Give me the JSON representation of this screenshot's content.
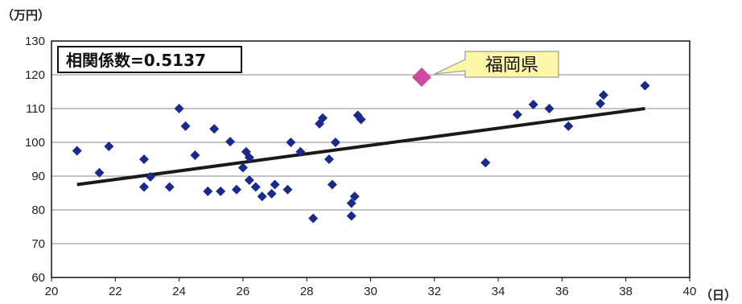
{
  "chart_data": {
    "type": "scatter",
    "ylabel": "（万円）",
    "xlabel": "（日）",
    "xlim": [
      20,
      40
    ],
    "ylim": [
      60,
      130
    ],
    "xticks": [
      20,
      22,
      24,
      26,
      28,
      30,
      32,
      34,
      36,
      38,
      40
    ],
    "yticks": [
      60,
      70,
      80,
      90,
      100,
      110,
      120,
      130
    ],
    "grid": "horizontal",
    "annotation_box": "相関係数=0.5137",
    "highlight": {
      "label": "福岡県",
      "x": 31.6,
      "y": 119.3,
      "color": "#cc4aa0"
    },
    "point_color": "#1a2a8c",
    "trendline": {
      "x": [
        20.8,
        38.6
      ],
      "y": [
        87.5,
        110.0
      ],
      "color": "#1a1a1a"
    },
    "points": [
      [
        20.8,
        97.5
      ],
      [
        21.5,
        91.0
      ],
      [
        21.8,
        98.8
      ],
      [
        22.9,
        95.0
      ],
      [
        22.9,
        86.8
      ],
      [
        23.1,
        89.8
      ],
      [
        23.7,
        86.8
      ],
      [
        24.0,
        110.0
      ],
      [
        24.2,
        104.8
      ],
      [
        24.5,
        96.2
      ],
      [
        24.9,
        85.5
      ],
      [
        25.1,
        104.0
      ],
      [
        25.3,
        85.5
      ],
      [
        25.6,
        100.2
      ],
      [
        25.8,
        86.0
      ],
      [
        26.0,
        92.5
      ],
      [
        26.1,
        97.2
      ],
      [
        26.2,
        95.5
      ],
      [
        26.2,
        88.8
      ],
      [
        26.4,
        86.8
      ],
      [
        26.6,
        84.0
      ],
      [
        26.9,
        84.8
      ],
      [
        27.0,
        87.5
      ],
      [
        27.4,
        86.0
      ],
      [
        27.5,
        100.0
      ],
      [
        27.8,
        97.2
      ],
      [
        28.2,
        77.5
      ],
      [
        28.4,
        105.5
      ],
      [
        28.5,
        107.2
      ],
      [
        28.7,
        95.0
      ],
      [
        28.8,
        87.5
      ],
      [
        28.9,
        100.0
      ],
      [
        29.4,
        78.2
      ],
      [
        29.4,
        82.0
      ],
      [
        29.5,
        84.0
      ],
      [
        29.6,
        108.0
      ],
      [
        29.7,
        106.8
      ],
      [
        33.6,
        94.0
      ],
      [
        34.6,
        108.2
      ],
      [
        35.1,
        111.2
      ],
      [
        35.6,
        110.0
      ],
      [
        36.2,
        104.8
      ],
      [
        37.2,
        111.5
      ],
      [
        37.3,
        114.0
      ],
      [
        38.6,
        116.8
      ]
    ]
  }
}
